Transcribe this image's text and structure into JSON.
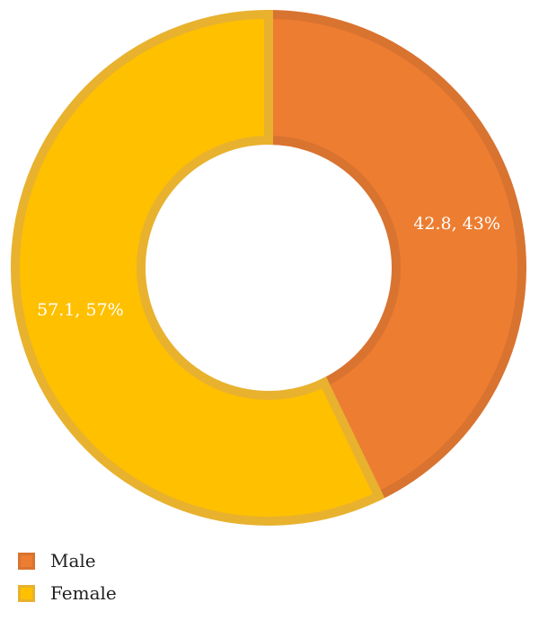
{
  "chart_data": {
    "type": "pie",
    "variant": "donut",
    "categories": [
      "Male",
      "Female"
    ],
    "values": [
      42.8,
      57.1
    ],
    "labels": [
      "42.8, 43%",
      "57.1, 57%"
    ],
    "colors": [
      "#ED7D31",
      "#FFC000"
    ],
    "border_colors": [
      "#D97330",
      "#E8B22E"
    ],
    "start_angle": "12 o'clock",
    "direction": "clockwise",
    "legend_position": "bottom-left"
  }
}
